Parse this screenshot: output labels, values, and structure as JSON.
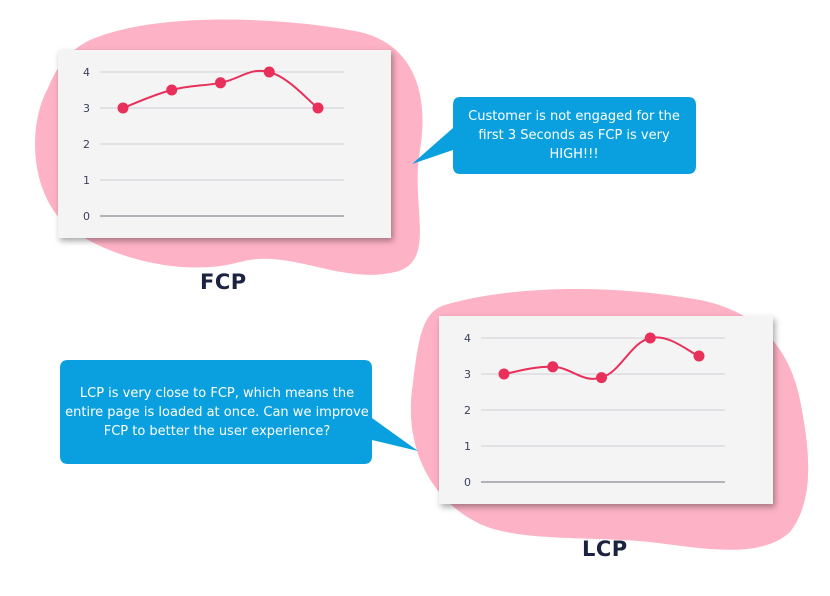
{
  "colors": {
    "blob": "#fdb2c5",
    "bubble": "#0aa0df",
    "line": "#e8305a",
    "grid": "#cfcfd6",
    "axis": "#8a8a94",
    "tick_text": "#3a3f5a",
    "title_text": "#1c2340"
  },
  "callouts": {
    "fcp": "Customer is not engaged for the first 3 Seconds as FCP is very HIGH!!!",
    "lcp": "LCP is very close to FCP, which means the entire page is loaded at once. Can we improve FCP to better the user experience?"
  },
  "chart_data": [
    {
      "type": "line",
      "title": "FCP",
      "x": [
        1,
        2,
        3,
        4,
        5
      ],
      "series": [
        {
          "values": [
            3,
            3.5,
            3.7,
            4,
            3
          ]
        }
      ],
      "ylim": [
        0,
        4
      ],
      "yticks": [
        0,
        1,
        2,
        3,
        4
      ],
      "grid": true,
      "legend": "none"
    },
    {
      "type": "line",
      "title": "LCP",
      "x": [
        1,
        2,
        3,
        4,
        5
      ],
      "series": [
        {
          "values": [
            3,
            3.2,
            2.9,
            4,
            3.5
          ]
        }
      ],
      "ylim": [
        0,
        4
      ],
      "yticks": [
        0,
        1,
        2,
        3,
        4
      ],
      "grid": true,
      "legend": "none"
    }
  ]
}
